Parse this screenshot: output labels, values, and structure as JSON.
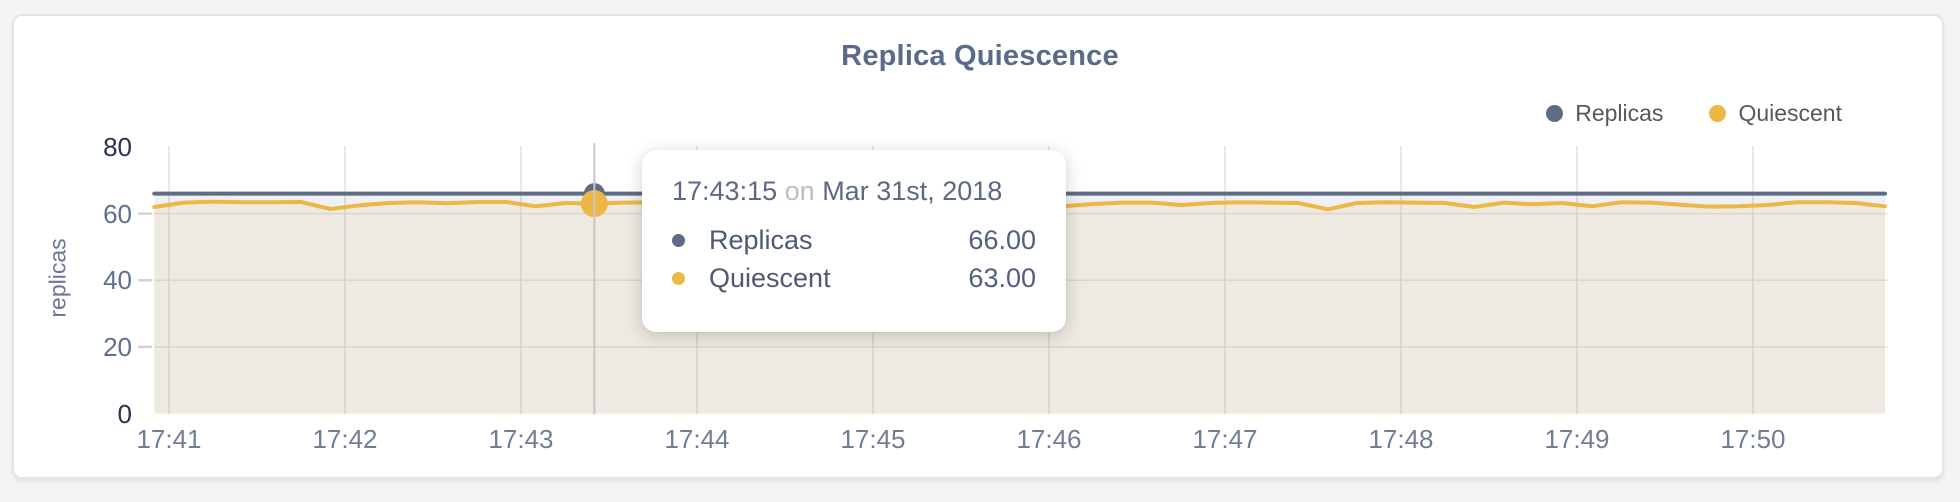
{
  "page": {
    "background": "#f4f4f5",
    "card_background": "#ffffff"
  },
  "chart": {
    "title": "Replica Quiescence",
    "y_axis_label": "replicas",
    "legend": [
      {
        "label": "Replicas",
        "color": "#5e6b85"
      },
      {
        "label": "Quiescent",
        "color": "#ecb843"
      }
    ]
  },
  "tooltip": {
    "time": "17:43:15",
    "connector": "on",
    "date": "Mar 31st, 2018",
    "rows": [
      {
        "label": "Replicas",
        "value": "66.00",
        "color": "#5e6b85"
      },
      {
        "label": "Quiescent",
        "value": "63.00",
        "color": "#ecb843"
      }
    ]
  },
  "chart_data": {
    "type": "line",
    "title": "Replica Quiescence",
    "xlabel": "",
    "ylabel": "replicas",
    "ylim": [
      0,
      80
    ],
    "y_ticks": [
      0,
      20,
      40,
      60,
      80
    ],
    "x_ticks": [
      "17:41",
      "17:42",
      "17:43",
      "17:44",
      "17:45",
      "17:46",
      "17:47",
      "17:48",
      "17:49",
      "17:50"
    ],
    "x_start_seconds": -5,
    "x_step_seconds": 10,
    "grid": true,
    "legend_position": "top-right",
    "crosshair_color": "#c7c7c7",
    "gridline_color_h": "#e7e7e7",
    "gridline_color_v": "#e2e2e3",
    "tick_color": "#d2d2d2",
    "series": [
      {
        "name": "Replicas",
        "color": "#5e6b85",
        "fill": "rgba(94,107,133,0.10)",
        "values": [
          66,
          66,
          66,
          66,
          66,
          66,
          66,
          66,
          66,
          66,
          66,
          66,
          66,
          66,
          66,
          66,
          66,
          66,
          66,
          66,
          66,
          66,
          66,
          66,
          66,
          66,
          66,
          66,
          66,
          66,
          66,
          66,
          66,
          66,
          66,
          66,
          66,
          66,
          66,
          66,
          66,
          66,
          66,
          66,
          66,
          66,
          66,
          66,
          66,
          66,
          66,
          66,
          66,
          66,
          66,
          66,
          66,
          66,
          66,
          66
        ]
      },
      {
        "name": "Quiescent",
        "color": "#ecb843",
        "fill": "rgba(236,184,67,0.10)",
        "values": [
          62.0,
          63.3,
          63.6,
          63.4,
          63.4,
          63.5,
          61.4,
          62.5,
          63.2,
          63.4,
          63.1,
          63.5,
          63.5,
          62.2,
          63.2,
          63.0,
          63.3,
          63.4,
          63.2,
          63.5,
          63.3,
          62.8,
          63.4,
          63.3,
          63.5,
          63.2,
          63.4,
          63.3,
          63.5,
          63.4,
          63.2,
          62.2,
          62.9,
          63.3,
          63.3,
          62.6,
          63.2,
          63.4,
          63.3,
          63.2,
          61.3,
          63.2,
          63.4,
          63.3,
          63.2,
          62.0,
          63.3,
          62.8,
          63.2,
          62.2,
          63.4,
          63.3,
          62.7,
          62.1,
          62.2,
          62.6,
          63.4,
          63.4,
          63.2,
          62.2
        ]
      }
    ],
    "hover": {
      "index": 15,
      "time": "17:43:15",
      "date": "Mar 31st, 2018",
      "values": {
        "Replicas": 66.0,
        "Quiescent": 63.0
      }
    }
  }
}
